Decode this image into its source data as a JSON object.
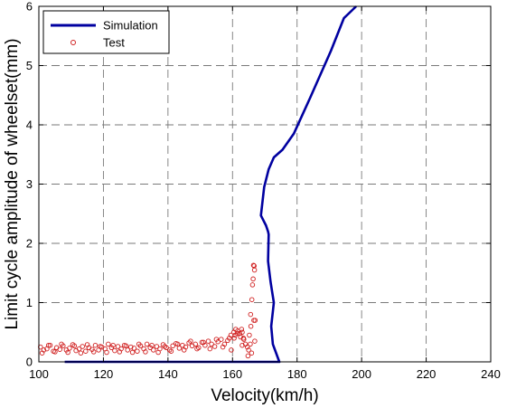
{
  "chart_data": {
    "type": "scatter",
    "xlabel": "Velocity(km/h)",
    "ylabel": "Limit cycle amplitude of wheelset(mm)",
    "xlim": [
      100,
      240
    ],
    "ylim": [
      0,
      6
    ],
    "xticks": [
      100,
      120,
      140,
      160,
      180,
      200,
      220,
      240
    ],
    "yticks": [
      0,
      1,
      2,
      3,
      4,
      5,
      6
    ],
    "grid": true,
    "grid_style": "dashed",
    "legend_position": "top-left",
    "colors": {
      "simulation": "#0000A0",
      "test": "#D02020"
    },
    "series": [
      {
        "name": "Simulation",
        "kind": "line",
        "x": [
          108,
          174.5,
          172.5,
          172.0,
          172.8,
          171.8,
          171.0,
          171.2,
          171.0,
          170.4,
          168.8,
          169.8,
          171.2,
          172.8,
          175.5,
          179.0,
          184.0,
          190.5,
          194.5,
          198.3
        ],
        "y": [
          0,
          0,
          0.3,
          0.6,
          1.0,
          1.35,
          1.7,
          2.15,
          2.2,
          2.3,
          2.47,
          2.95,
          3.25,
          3.45,
          3.58,
          3.85,
          4.45,
          5.25,
          5.8,
          6.0
        ]
      },
      {
        "name": "Test",
        "kind": "scatter",
        "x": [
          100.5,
          101.5,
          102.5,
          103.5,
          104.5,
          105.5,
          106.5,
          107.5,
          108.5,
          109.5,
          110.5,
          111.5,
          112.5,
          113.5,
          114.5,
          115.5,
          116.5,
          117.5,
          118.5,
          119.5,
          120.5,
          121.5,
          122.5,
          123.5,
          124.5,
          125.5,
          126.5,
          127.5,
          128.5,
          129.5,
          130.5,
          131.5,
          132.5,
          133.5,
          134.5,
          135.5,
          136.5,
          137.5,
          138.5,
          139.5,
          140.5,
          141.5,
          142.5,
          143.5,
          144.5,
          145.5,
          146.5,
          147.5,
          148.5,
          149.5,
          150.5,
          151.5,
          152.5,
          153.5,
          154.5,
          155.5,
          156.5,
          157.5,
          158.5,
          159.5,
          160.5,
          161.5,
          162.5,
          163.5,
          101.0,
          103.0,
          105.0,
          107.0,
          109.0,
          111.0,
          113.0,
          115.0,
          117.0,
          119.0,
          121.0,
          123.0,
          125.0,
          127.0,
          129.0,
          131.0,
          133.0,
          135.0,
          137.0,
          139.0,
          141.0,
          143.0,
          145.0,
          147.0,
          149.0,
          151.0,
          153.0,
          155.0,
          157.0,
          159.0,
          161.0,
          163.0,
          164.8,
          165.0,
          165.5,
          165.2,
          165.7,
          165.6,
          166.0,
          166.2,
          166.4,
          166.5,
          166.7,
          166.8,
          167.0,
          166.6,
          166.9,
          160.4,
          160.8,
          161.6,
          162.2,
          162.8,
          163.4,
          164.0,
          164.6,
          159.6,
          163.0,
          165.9
        ],
        "y": [
          0.25,
          0.2,
          0.22,
          0.28,
          0.18,
          0.24,
          0.21,
          0.27,
          0.2,
          0.23,
          0.29,
          0.19,
          0.22,
          0.26,
          0.18,
          0.24,
          0.21,
          0.28,
          0.2,
          0.25,
          0.22,
          0.3,
          0.24,
          0.19,
          0.26,
          0.22,
          0.28,
          0.2,
          0.25,
          0.23,
          0.18,
          0.27,
          0.22,
          0.3,
          0.24,
          0.2,
          0.26,
          0.22,
          0.29,
          0.24,
          0.2,
          0.27,
          0.31,
          0.23,
          0.28,
          0.25,
          0.32,
          0.27,
          0.3,
          0.24,
          0.33,
          0.28,
          0.35,
          0.3,
          0.26,
          0.34,
          0.38,
          0.3,
          0.36,
          0.45,
          0.4,
          0.48,
          0.42,
          0.38,
          0.15,
          0.28,
          0.17,
          0.3,
          0.16,
          0.27,
          0.15,
          0.29,
          0.17,
          0.26,
          0.16,
          0.28,
          0.17,
          0.27,
          0.16,
          0.3,
          0.17,
          0.28,
          0.16,
          0.26,
          0.18,
          0.3,
          0.2,
          0.35,
          0.22,
          0.33,
          0.22,
          0.38,
          0.25,
          0.4,
          0.55,
          0.5,
          0.1,
          0.2,
          0.3,
          0.45,
          0.6,
          0.8,
          1.05,
          1.3,
          1.4,
          1.63,
          1.62,
          1.55,
          0.7,
          0.7,
          0.35,
          0.5,
          0.45,
          0.52,
          0.48,
          0.55,
          0.4,
          0.3,
          0.25,
          0.2,
          0.28,
          0.15
        ]
      }
    ]
  }
}
